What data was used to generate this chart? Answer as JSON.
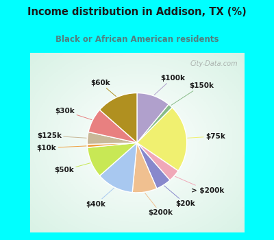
{
  "title": "Income distribution in Addison, TX (%)",
  "subtitle": "Black or African American residents",
  "bg_cyan": "#00FFFF",
  "bg_chart": "#e0f0e8",
  "labels": [
    "$100k",
    "$150k",
    "$75k",
    "> $200k",
    "$20k",
    "$200k",
    "$40k",
    "$50k",
    "$10k",
    "$125k",
    "$30k",
    "$60k"
  ],
  "sizes": [
    11,
    1.5,
    22,
    4,
    5,
    8,
    12,
    10,
    1,
    4,
    8,
    13.5
  ],
  "colors": [
    "#b0a0cc",
    "#88bb88",
    "#f0f070",
    "#f0a8b8",
    "#8888cc",
    "#f0c090",
    "#a8c8f0",
    "#c8e855",
    "#f0a040",
    "#c8b898",
    "#e88080",
    "#b09020"
  ],
  "watermark": "City-Data.com",
  "title_color": "#1a1a1a",
  "subtitle_color": "#508080",
  "label_color": "#1a1a1a"
}
